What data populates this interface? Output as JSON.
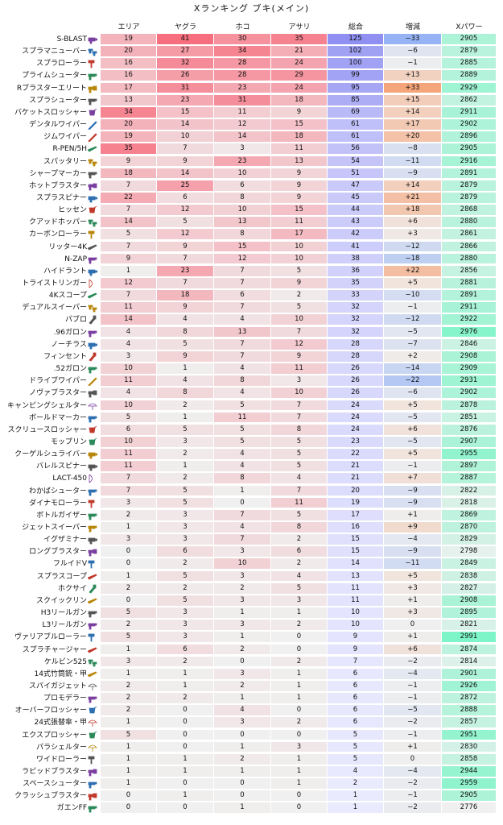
{
  "title": "Xランキング ブキ(メイン)",
  "headers": [
    "エリア",
    "ヤグラ",
    "ホコ",
    "アサリ",
    "総合",
    "増減",
    "Xパワー"
  ],
  "chart_data": {
    "type": "heatmap",
    "title": "Xランキング ブキ(メイン)",
    "columns": [
      "エリア",
      "ヤグラ",
      "ホコ",
      "アサリ",
      "総合",
      "増減",
      "Xパワー"
    ],
    "rows": [
      {
        "weapon": "S-BLAST",
        "values": [
          19,
          41,
          30,
          35,
          125,
          "−33",
          2905
        ],
        "icon": "splatling-icon"
      },
      {
        "weapon": "スプラマニューバー",
        "values": [
          20,
          27,
          34,
          21,
          102,
          "−6",
          2879
        ],
        "icon": "dualie-icon"
      },
      {
        "weapon": "スプラローラー",
        "values": [
          16,
          32,
          28,
          24,
          100,
          "−1",
          2885
        ],
        "icon": "roller-icon"
      },
      {
        "weapon": "プライムシューター",
        "values": [
          16,
          26,
          28,
          29,
          99,
          "+13",
          2889
        ],
        "icon": "shooter-icon"
      },
      {
        "weapon": "Rブラスターエリート",
        "values": [
          17,
          31,
          23,
          24,
          95,
          "+33",
          2929
        ],
        "icon": "blaster-icon"
      },
      {
        "weapon": "スプラシューター",
        "values": [
          13,
          23,
          31,
          18,
          85,
          "+15",
          2862
        ],
        "icon": "shooter-icon"
      },
      {
        "weapon": "バケットスロッシャー",
        "values": [
          34,
          15,
          11,
          9,
          69,
          "+14",
          2911
        ],
        "icon": "slosher-icon"
      },
      {
        "weapon": "デンタルワイパー",
        "values": [
          20,
          14,
          12,
          15,
          61,
          "+17",
          2902
        ],
        "icon": "splatana-icon"
      },
      {
        "weapon": "ジムワイパー",
        "values": [
          19,
          10,
          14,
          18,
          61,
          "+20",
          2896
        ],
        "icon": "splatana-icon"
      },
      {
        "weapon": "R-PEN/5H",
        "values": [
          35,
          7,
          3,
          11,
          56,
          "−8",
          2905
        ],
        "icon": "charger-icon"
      },
      {
        "weapon": "スパッタリー",
        "values": [
          9,
          9,
          23,
          13,
          54,
          "−11",
          2916
        ],
        "icon": "dualie-icon"
      },
      {
        "weapon": "シャープマーカー",
        "values": [
          18,
          14,
          10,
          9,
          51,
          "−9",
          2891
        ],
        "icon": "shooter-icon"
      },
      {
        "weapon": "ホットブラスター",
        "values": [
          7,
          25,
          6,
          9,
          47,
          "+14",
          2879
        ],
        "icon": "blaster-icon"
      },
      {
        "weapon": "スプラスピナー",
        "values": [
          22,
          6,
          8,
          9,
          45,
          "+21",
          2879
        ],
        "icon": "splatling-icon"
      },
      {
        "weapon": "ヒッセン",
        "values": [
          7,
          12,
          10,
          15,
          44,
          "+18",
          2868
        ],
        "icon": "slosher-icon"
      },
      {
        "weapon": "クアッドホッパー",
        "values": [
          14,
          5,
          13,
          11,
          43,
          "+6",
          2880
        ],
        "icon": "dualie-icon"
      },
      {
        "weapon": "カーボンローラー",
        "values": [
          5,
          12,
          8,
          17,
          42,
          "+3",
          2861
        ],
        "icon": "roller-icon"
      },
      {
        "weapon": "リッター4K",
        "values": [
          7,
          9,
          15,
          10,
          41,
          "−12",
          2866
        ],
        "icon": "charger-icon"
      },
      {
        "weapon": "N-ZAP",
        "values": [
          9,
          7,
          12,
          10,
          38,
          "−18",
          2880
        ],
        "icon": "shooter-icon"
      },
      {
        "weapon": "ハイドラント",
        "values": [
          1,
          23,
          7,
          5,
          36,
          "+22",
          2856
        ],
        "icon": "splatling-icon"
      },
      {
        "weapon": "トライストリンガー",
        "values": [
          12,
          7,
          7,
          9,
          35,
          "+5",
          2881
        ],
        "icon": "stringer-icon"
      },
      {
        "weapon": "4Kスコープ",
        "values": [
          7,
          18,
          6,
          2,
          33,
          "−10",
          2891
        ],
        "icon": "charger-icon"
      },
      {
        "weapon": "デュアルスイーパー",
        "values": [
          11,
          9,
          7,
          5,
          32,
          "−1",
          2911
        ],
        "icon": "dualie-icon"
      },
      {
        "weapon": "パブロ",
        "values": [
          14,
          4,
          4,
          10,
          32,
          "−12",
          2922
        ],
        "icon": "brush-icon"
      },
      {
        "weapon": ".96ガロン",
        "values": [
          4,
          8,
          13,
          7,
          32,
          "−5",
          2976
        ],
        "icon": "shooter-icon"
      },
      {
        "weapon": "ノーチラス",
        "values": [
          4,
          5,
          7,
          12,
          28,
          "−7",
          2846
        ],
        "icon": "splatling-icon"
      },
      {
        "weapon": "フィンセント",
        "values": [
          3,
          9,
          7,
          9,
          28,
          "+2",
          2908
        ],
        "icon": "brush-icon"
      },
      {
        "weapon": ".52ガロン",
        "values": [
          10,
          1,
          4,
          11,
          26,
          "−14",
          2909
        ],
        "icon": "shooter-icon"
      },
      {
        "weapon": "ドライブワイパー",
        "values": [
          11,
          4,
          8,
          3,
          26,
          "−22",
          2931
        ],
        "icon": "splatana-icon"
      },
      {
        "weapon": "ノヴァブラスター",
        "values": [
          4,
          8,
          4,
          10,
          26,
          "−6",
          2902
        ],
        "icon": "blaster-icon"
      },
      {
        "weapon": "キャンピングシェルター",
        "values": [
          10,
          2,
          5,
          7,
          24,
          "+5",
          2878
        ],
        "icon": "brella-icon"
      },
      {
        "weapon": "ボールドマーカー",
        "values": [
          5,
          1,
          11,
          7,
          24,
          "−5",
          2851
        ],
        "icon": "shooter-icon"
      },
      {
        "weapon": "スクリュースロッシャー",
        "values": [
          6,
          5,
          5,
          8,
          24,
          "+6",
          2876
        ],
        "icon": "slosher-icon"
      },
      {
        "weapon": "モップリン",
        "values": [
          10,
          3,
          5,
          5,
          23,
          "−5",
          2907
        ],
        "icon": "slosher-icon"
      },
      {
        "weapon": "クーゲルシュライバー",
        "values": [
          11,
          2,
          4,
          5,
          22,
          "+5",
          2955
        ],
        "icon": "splatling-icon"
      },
      {
        "weapon": "バレルスピナー",
        "values": [
          11,
          1,
          4,
          5,
          21,
          "−1",
          2897
        ],
        "icon": "splatling-icon"
      },
      {
        "weapon": "LACT-450",
        "values": [
          7,
          2,
          8,
          4,
          21,
          "+7",
          2887
        ],
        "icon": "stringer-icon"
      },
      {
        "weapon": "わかばシューター",
        "values": [
          7,
          5,
          1,
          7,
          20,
          "−9",
          2822
        ],
        "icon": "shooter-icon"
      },
      {
        "weapon": "ダイナモローラー",
        "values": [
          3,
          5,
          0,
          11,
          19,
          "−9",
          2818
        ],
        "icon": "roller-icon"
      },
      {
        "weapon": "ボトルガイザー",
        "values": [
          2,
          3,
          7,
          5,
          17,
          "+1",
          2869
        ],
        "icon": "shooter-icon"
      },
      {
        "weapon": "ジェットスイーパー",
        "values": [
          1,
          3,
          4,
          8,
          16,
          "+9",
          2870
        ],
        "icon": "shooter-icon"
      },
      {
        "weapon": "イグザミナー",
        "values": [
          3,
          3,
          7,
          2,
          15,
          "−4",
          2829
        ],
        "icon": "splatling-icon"
      },
      {
        "weapon": "ロングブラスター",
        "values": [
          0,
          6,
          3,
          6,
          15,
          "−9",
          2798
        ],
        "icon": "blaster-icon"
      },
      {
        "weapon": "フルイドV",
        "values": [
          0,
          2,
          10,
          2,
          14,
          "−11",
          2849
        ],
        "icon": "roller-icon"
      },
      {
        "weapon": "スプラスコープ",
        "values": [
          1,
          5,
          3,
          4,
          13,
          "+5",
          2838
        ],
        "icon": "charger-icon"
      },
      {
        "weapon": "ホクサイ",
        "values": [
          2,
          2,
          2,
          5,
          11,
          "+3",
          2827
        ],
        "icon": "brush-icon"
      },
      {
        "weapon": "スクイックリン",
        "values": [
          0,
          5,
          3,
          3,
          11,
          "+1",
          2908
        ],
        "icon": "charger-icon"
      },
      {
        "weapon": "H3リールガン",
        "values": [
          5,
          3,
          1,
          1,
          10,
          "+3",
          2895
        ],
        "icon": "shooter-icon"
      },
      {
        "weapon": "L3リールガン",
        "values": [
          2,
          3,
          3,
          2,
          10,
          "0",
          2821
        ],
        "icon": "shooter-icon"
      },
      {
        "weapon": "ヴァリアブルローラー",
        "values": [
          5,
          3,
          1,
          0,
          9,
          "+1",
          2991
        ],
        "icon": "roller-icon"
      },
      {
        "weapon": "スプラチャージャー",
        "values": [
          1,
          6,
          2,
          0,
          9,
          "+6",
          2874
        ],
        "icon": "charger-icon"
      },
      {
        "weapon": "ケルビン525",
        "values": [
          3,
          2,
          0,
          2,
          7,
          "−2",
          2814
        ],
        "icon": "dualie-icon"
      },
      {
        "weapon": "14式竹筒銃・甲",
        "values": [
          1,
          1,
          3,
          1,
          6,
          "−4",
          2901
        ],
        "icon": "charger-icon"
      },
      {
        "weapon": "スパイガジェット",
        "values": [
          2,
          1,
          2,
          1,
          6,
          "−1",
          2926
        ],
        "icon": "brella-icon"
      },
      {
        "weapon": "プロモデラー",
        "values": [
          2,
          2,
          1,
          1,
          6,
          "−1",
          2872
        ],
        "icon": "shooter-icon"
      },
      {
        "weapon": "オーバーフロッシャー",
        "values": [
          2,
          0,
          4,
          0,
          6,
          "−5",
          2888
        ],
        "icon": "slosher-icon"
      },
      {
        "weapon": "24式張替傘・甲",
        "values": [
          1,
          0,
          3,
          2,
          6,
          "−2",
          2857
        ],
        "icon": "brella-icon"
      },
      {
        "weapon": "エクスプロッシャー",
        "values": [
          5,
          0,
          0,
          0,
          5,
          "−1",
          2951
        ],
        "icon": "slosher-icon"
      },
      {
        "weapon": "パラシェルター",
        "values": [
          1,
          0,
          1,
          3,
          5,
          "+1",
          2830
        ],
        "icon": "brella-icon"
      },
      {
        "weapon": "ワイドローラー",
        "values": [
          1,
          1,
          2,
          1,
          5,
          "0",
          2858
        ],
        "icon": "roller-icon"
      },
      {
        "weapon": "ラピッドブラスター",
        "values": [
          1,
          1,
          1,
          1,
          4,
          "−4",
          2944
        ],
        "icon": "blaster-icon"
      },
      {
        "weapon": "スペースシューター",
        "values": [
          1,
          0,
          0,
          1,
          2,
          "−2",
          2959
        ],
        "icon": "shooter-icon"
      },
      {
        "weapon": "クラッシュブラスター",
        "values": [
          0,
          1,
          0,
          0,
          1,
          "−1",
          2905
        ],
        "icon": "blaster-icon"
      },
      {
        "weapon": "ガエンFF",
        "values": [
          0,
          0,
          1,
          0,
          1,
          "−2",
          2776
        ],
        "icon": "shooter-icon"
      }
    ]
  },
  "colors": {
    "mode_low": "#f0f0f0",
    "mode_high": "#f76f7f",
    "total_low": "#ebebff",
    "total_high": "#9090f2",
    "diff_up": "#f5a57a",
    "diff_down": "#96b4f5",
    "diff_zero": "#efefef",
    "xp_low": "#f0f0f0",
    "xp_high": "#7ef5c8"
  }
}
